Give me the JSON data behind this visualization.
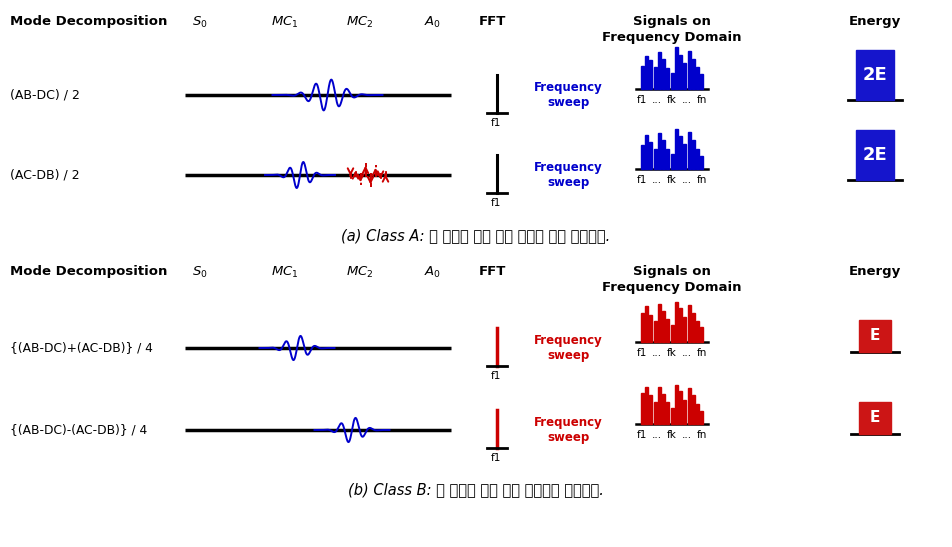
{
  "bg_color": "#ffffff",
  "blue_color": "#0000cc",
  "red_color": "#cc0000",
  "dark_blue_fill": "#1515cc",
  "dark_red_fill": "#cc1515",
  "class_a_caption": "(a) Class A: 두 종류의 모드 변이 성분을 모두 포함한다.",
  "class_b_caption": "(b) Class B: 한 종류의 모드 변이 성분만을 포함한다.",
  "row1_label": "(AB-DC) / 2",
  "row2_label": "(AC-DB) / 2",
  "row3_label": "{(AB-DC)+(AC-DB)} / 4",
  "row4_label": "{(AB-DC)-(AC-DB)} / 4",
  "header_mode": "Mode Decomposition",
  "header_fft": "FFT",
  "header_freq": "Signals on\nFrequency Domain",
  "header_energy": "Energy",
  "freq_sweep": "Frequency\nsweep",
  "figw": 9.52,
  "figh": 5.47,
  "dpi": 100
}
